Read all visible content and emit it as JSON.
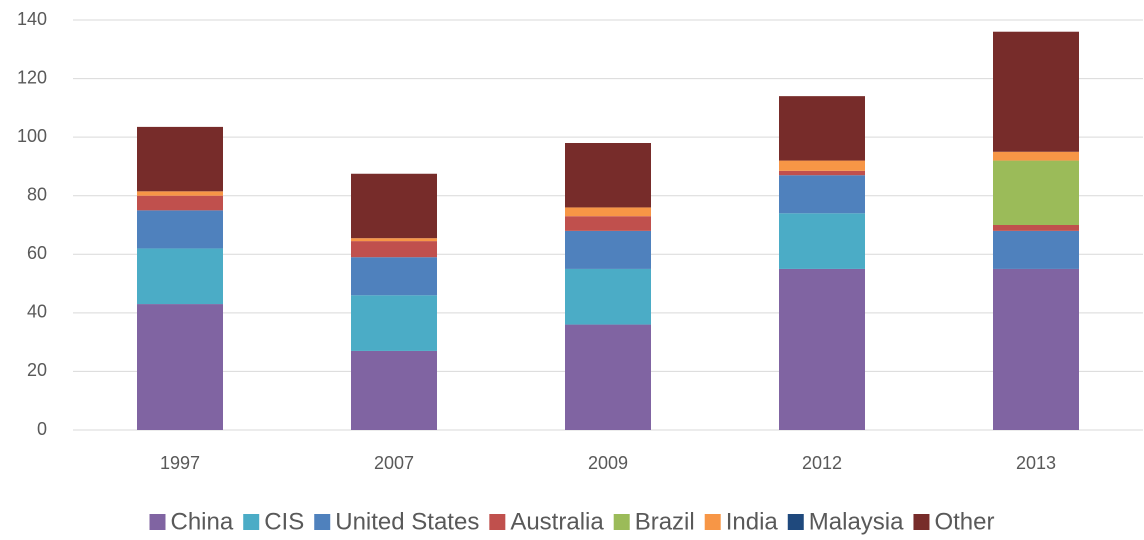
{
  "chart_data": {
    "type": "stacked_bar",
    "categories": [
      "1997",
      "2007",
      "2009",
      "2012",
      "2013"
    ],
    "series": [
      {
        "name": "China",
        "color": "#8064a2",
        "values": [
          43,
          27,
          36,
          55,
          55
        ]
      },
      {
        "name": "CIS",
        "color": "#4bacc6",
        "values": [
          19,
          19,
          19,
          19,
          0
        ]
      },
      {
        "name": "United States",
        "color": "#4f81bd",
        "values": [
          13,
          13,
          13,
          13,
          13
        ]
      },
      {
        "name": "Australia",
        "color": "#c0504d",
        "values": [
          5,
          5.5,
          5,
          1.5,
          2
        ]
      },
      {
        "name": "Brazil",
        "color": "#9bbb59",
        "values": [
          0,
          0,
          0,
          0,
          22
        ]
      },
      {
        "name": "India",
        "color": "#f79646",
        "values": [
          1.5,
          1,
          3,
          3.5,
          3
        ]
      },
      {
        "name": "Malaysia",
        "color": "#1f497d",
        "values": [
          0,
          0,
          0,
          0,
          0
        ]
      },
      {
        "name": "Other",
        "color": "#772c2a",
        "values": [
          22,
          22,
          22,
          22,
          41
        ]
      }
    ],
    "ylim": [
      0,
      140
    ],
    "yticks": [
      0,
      20,
      40,
      60,
      80,
      100,
      120,
      140
    ],
    "grid": true,
    "legend": "bottom"
  }
}
